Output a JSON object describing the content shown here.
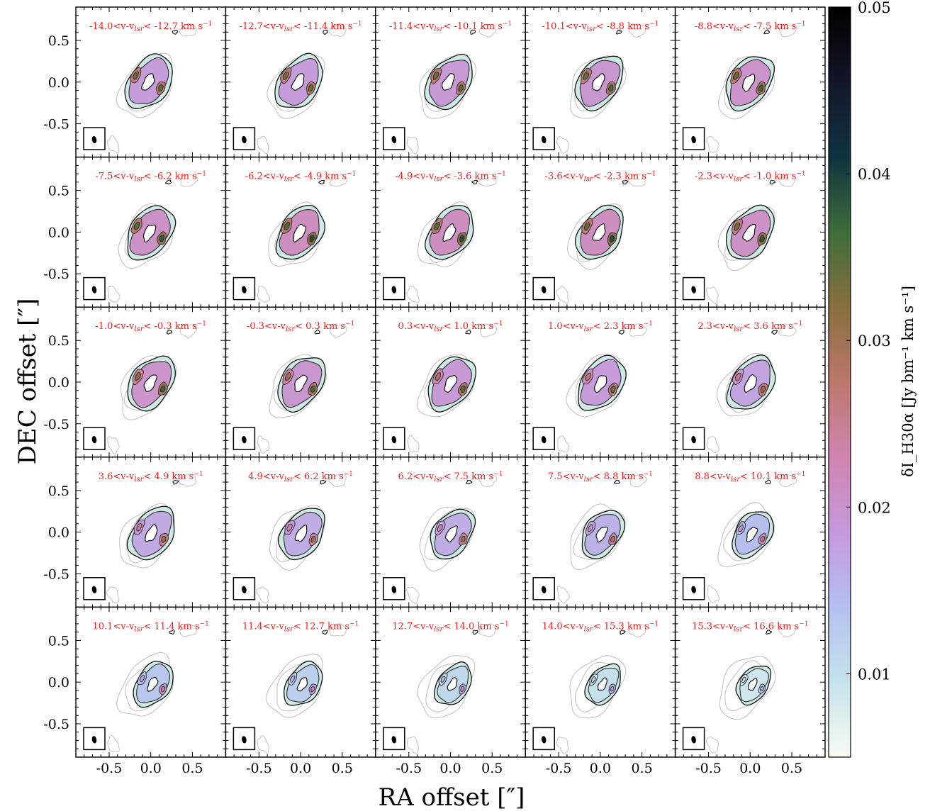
{
  "chart_data": {
    "type": "heatmap",
    "layout": "5x5 channel-map grid",
    "xlabel": "RA offset [″]",
    "ylabel": "DEC offset [″]",
    "xlim": [
      -0.9,
      0.9
    ],
    "ylim": [
      -0.9,
      0.9
    ],
    "x_ticks": [
      "-0.5",
      "0.0",
      "0.5"
    ],
    "y_ticks": [
      "0.5",
      "0.0",
      "-0.5"
    ],
    "colorbar": {
      "label": "δI_H30α [Jy bm⁻¹ km s⁻¹]",
      "range": [
        0.005,
        0.05
      ],
      "ticks": [
        "0.01",
        "0.02",
        "0.03",
        "0.04",
        "0.05"
      ],
      "tick_values": [
        0.01,
        0.02,
        0.03,
        0.04,
        0.05
      ],
      "stops": [
        "#f7fbf2",
        "#c6e3ec",
        "#b4c0ef",
        "#c699dc",
        "#d184b0",
        "#bd776b",
        "#896f3f",
        "#3d6e3a",
        "#0e3340",
        "#131628",
        "#000000"
      ]
    },
    "panels": [
      {
        "label": "-14.0<v-v",
        "sub": "lsr",
        "label_end": "< -12.7 km s",
        "sup": "−1",
        "peak": 0.034
      },
      {
        "label": "-12.7<v-v",
        "sub": "lsr",
        "label_end": "< -11.4 km s",
        "sup": "−1",
        "peak": 0.034
      },
      {
        "label": "-11.4<v-v",
        "sub": "lsr",
        "label_end": "< -10.1 km s",
        "sup": "−1",
        "peak": 0.035
      },
      {
        "label": "-10.1<v-v",
        "sub": "lsr",
        "label_end": "< -8.8 km s",
        "sup": "−1",
        "peak": 0.036
      },
      {
        "label": "-8.8<v-v",
        "sub": "lsr",
        "label_end": "< -7.5 km s",
        "sup": "−1",
        "peak": 0.037
      },
      {
        "label": "-7.5<v-v",
        "sub": "lsr",
        "label_end": "< -6.2 km s",
        "sup": "−1",
        "peak": 0.038
      },
      {
        "label": "-6.2<v-v",
        "sub": "lsr",
        "label_end": "< -4.9 km s",
        "sup": "−1",
        "peak": 0.039
      },
      {
        "label": "-4.9<v-v",
        "sub": "lsr",
        "label_end": "< -3.6 km s",
        "sup": "−1",
        "peak": 0.039
      },
      {
        "label": "-3.6<v-v",
        "sub": "lsr",
        "label_end": "< -2.3 km s",
        "sup": "−1",
        "peak": 0.039
      },
      {
        "label": "-2.3<v-v",
        "sub": "lsr",
        "label_end": "< -1.0 km s",
        "sup": "−1",
        "peak": 0.038
      },
      {
        "label": "-1.0<v-v",
        "sub": "lsr",
        "label_end": "< -0.3 km s",
        "sup": "−1",
        "peak": 0.037
      },
      {
        "label": "-0.3<v-v",
        "sub": "lsr",
        "label_end": "<  0.3 km s",
        "sup": "−1",
        "peak": 0.036
      },
      {
        "label": "0.3<v-v",
        "sub": "lsr",
        "label_end": "<  1.0 km s",
        "sup": "−1",
        "peak": 0.035
      },
      {
        "label": "1.0<v-v",
        "sub": "lsr",
        "label_end": "<  2.3 km s",
        "sup": "−1",
        "peak": 0.034
      },
      {
        "label": "2.3<v-v",
        "sub": "lsr",
        "label_end": "<  3.6 km s",
        "sup": "−1",
        "peak": 0.032
      },
      {
        "label": "3.6<v-v",
        "sub": "lsr",
        "label_end": "<  4.9 km s",
        "sup": "−1",
        "peak": 0.031
      },
      {
        "label": "4.9<v-v",
        "sub": "lsr",
        "label_end": "<  6.2 km s",
        "sup": "−1",
        "peak": 0.03
      },
      {
        "label": "6.2<v-v",
        "sub": "lsr",
        "label_end": "<  7.5 km s",
        "sup": "−1",
        "peak": 0.03
      },
      {
        "label": "7.5<v-v",
        "sub": "lsr",
        "label_end": "<  8.8 km s",
        "sup": "−1",
        "peak": 0.029
      },
      {
        "label": "8.8<v-v",
        "sub": "lsr",
        "label_end": "< 10.1 km s",
        "sup": "−1",
        "peak": 0.026
      },
      {
        "label": "10.1<v-v",
        "sub": "lsr",
        "label_end": "< 11.4 km s",
        "sup": "−1",
        "peak": 0.024
      },
      {
        "label": "11.4<v-v",
        "sub": "lsr",
        "label_end": "< 12.7 km s",
        "sup": "−1",
        "peak": 0.022
      },
      {
        "label": "12.7<v-v",
        "sub": "lsr",
        "label_end": "< 14.0 km s",
        "sup": "−1",
        "peak": 0.02
      },
      {
        "label": "14.0<v-v",
        "sub": "lsr",
        "label_end": "< 15.3 km s",
        "sup": "−1",
        "peak": 0.018
      },
      {
        "label": "15.3<v-v",
        "sub": "lsr",
        "label_end": "< 16.6 km s",
        "sup": "−1",
        "peak": 0.016
      }
    ]
  }
}
